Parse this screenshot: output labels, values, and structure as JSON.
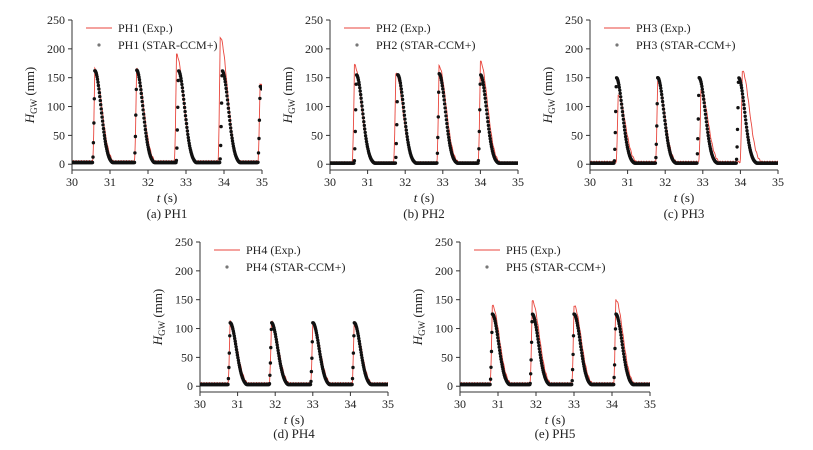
{
  "colors": {
    "exp": "#e8453c",
    "sim": "#111111",
    "axis": "#333333"
  },
  "chart_data": [
    {
      "type": "line",
      "caption": "(a) PH1",
      "xlabel": "t (s)",
      "ylabel": "HGW (mm)",
      "xlim": [
        30,
        35
      ],
      "ylim": [
        -10,
        250
      ],
      "xticks": [
        30,
        31,
        32,
        33,
        34,
        35
      ],
      "yticks": [
        0,
        50,
        100,
        150,
        200,
        250
      ],
      "legend": [
        "PH1 (Exp.)",
        "PH1 (STAR-CCM+)"
      ],
      "series": [
        {
          "name": "PH1 (Exp.)",
          "peaks": [
            [
              30.6,
              165
            ],
            [
              31.7,
              165
            ],
            [
              32.75,
              190
            ],
            [
              33.9,
              220
            ],
            [
              34.95,
              140
            ]
          ],
          "baseline": 5
        },
        {
          "name": "PH1 (STAR-CCM+)",
          "peaks": [
            [
              30.6,
              162
            ],
            [
              31.7,
              163
            ],
            [
              32.8,
              162
            ],
            [
              33.95,
              162
            ],
            [
              34.95,
              135
            ]
          ],
          "baseline": 3
        }
      ]
    },
    {
      "type": "line",
      "caption": "(b) PH2",
      "xlabel": "t (s)",
      "ylabel": "HGW (mm)",
      "xlim": [
        30,
        35
      ],
      "ylim": [
        -10,
        250
      ],
      "xticks": [
        30,
        31,
        32,
        33,
        34,
        35
      ],
      "yticks": [
        0,
        50,
        100,
        150,
        200,
        250
      ],
      "legend": [
        "PH2 (Exp.)",
        "PH2 (STAR-CCM+)"
      ],
      "series": [
        {
          "name": "PH2 (Exp.)",
          "peaks": [
            [
              30.65,
              172
            ],
            [
              31.75,
              158
            ],
            [
              32.9,
              170
            ],
            [
              34.0,
              178
            ]
          ],
          "baseline": 3
        },
        {
          "name": "PH2 (STAR-CCM+)",
          "peaks": [
            [
              30.7,
              155
            ],
            [
              31.8,
              155
            ],
            [
              32.9,
              157
            ],
            [
              34.0,
              155
            ]
          ],
          "baseline": 2
        }
      ]
    },
    {
      "type": "line",
      "caption": "(c) PH3",
      "xlabel": "t (s)",
      "ylabel": "HGW (mm)",
      "xlim": [
        30,
        35
      ],
      "ylim": [
        -10,
        250
      ],
      "xticks": [
        30,
        31,
        32,
        33,
        34,
        35
      ],
      "yticks": [
        0,
        50,
        100,
        150,
        200,
        250
      ],
      "legend": [
        "PH3 (Exp.)",
        "PH3 (STAR-CCM+)"
      ],
      "series": [
        {
          "name": "PH3 (Exp.)",
          "peaks": [
            [
              30.75,
              120
            ],
            [
              31.8,
              145
            ],
            [
              32.95,
              128
            ],
            [
              34.05,
              162
            ]
          ],
          "baseline": 4
        },
        {
          "name": "PH3 (STAR-CCM+)",
          "peaks": [
            [
              30.7,
              150
            ],
            [
              31.8,
              150
            ],
            [
              32.9,
              150
            ],
            [
              33.95,
              150
            ]
          ],
          "baseline": 2
        }
      ]
    },
    {
      "type": "line",
      "caption": "(d) PH4",
      "xlabel": "t (s)",
      "ylabel": "HGW (mm)",
      "xlim": [
        30,
        35
      ],
      "ylim": [
        -10,
        250
      ],
      "xticks": [
        30,
        31,
        32,
        33,
        34,
        35
      ],
      "yticks": [
        0,
        50,
        100,
        150,
        200,
        250
      ],
      "legend": [
        "PH4 (Exp.)",
        "PH4 (STAR-CCM+)"
      ],
      "series": [
        {
          "name": "PH4 (Exp.)",
          "peaks": [
            [
              30.8,
              112
            ],
            [
              31.9,
              112
            ],
            [
              33.0,
              112
            ],
            [
              34.1,
              112
            ]
          ],
          "baseline": 5
        },
        {
          "name": "PH4 (STAR-CCM+)",
          "peaks": [
            [
              30.8,
              110
            ],
            [
              31.9,
              110
            ],
            [
              33.0,
              110
            ],
            [
              34.1,
              110
            ]
          ],
          "baseline": 3
        }
      ]
    },
    {
      "type": "line",
      "caption": "(e) PH5",
      "xlabel": "t (s)",
      "ylabel": "HGW (mm)",
      "xlim": [
        30,
        35
      ],
      "ylim": [
        -10,
        250
      ],
      "xticks": [
        30,
        31,
        32,
        33,
        34,
        35
      ],
      "yticks": [
        0,
        50,
        100,
        150,
        200,
        250
      ],
      "legend": [
        "PH5 (Exp.)",
        "PH5 (STAR-CCM+)"
      ],
      "series": [
        {
          "name": "PH5 (Exp.)",
          "peaks": [
            [
              30.85,
              140
            ],
            [
              31.9,
              148
            ],
            [
              33.0,
              140
            ],
            [
              34.1,
              150
            ]
          ],
          "baseline": 5
        },
        {
          "name": "PH5 (STAR-CCM+)",
          "peaks": [
            [
              30.85,
              125
            ],
            [
              31.9,
              125
            ],
            [
              33.0,
              125
            ],
            [
              34.1,
              125
            ]
          ],
          "baseline": 3
        }
      ]
    }
  ]
}
